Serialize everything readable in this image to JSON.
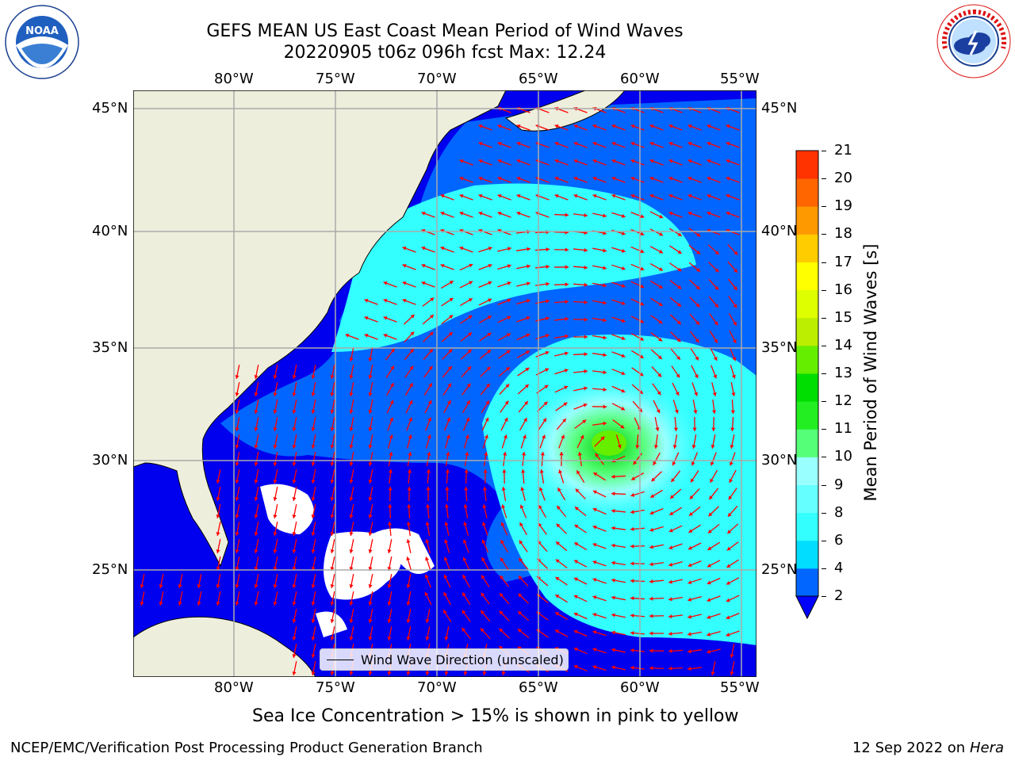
{
  "title_line1": "GEFS MEAN US East Coast Mean Period of Wind Waves",
  "title_line2": "20220905 t06z 096h fcst   Max: 12.24",
  "lon_ticks": [
    "80°W",
    "75°W",
    "70°W",
    "65°W",
    "60°W",
    "55°W"
  ],
  "lat_ticks": [
    "45°N",
    "40°N",
    "35°N",
    "30°N",
    "25°N"
  ],
  "colorbar": {
    "label": "Mean Period of Wind Waves [s]",
    "ticks": [
      "2",
      "4",
      "6",
      "8",
      "9",
      "10",
      "11",
      "12",
      "13",
      "14",
      "15",
      "16",
      "17",
      "18",
      "19",
      "20",
      "21"
    ],
    "colors": [
      "#0066ff",
      "#00ddff",
      "#33ffff",
      "#66ffff",
      "#99ffff",
      "#55ff77",
      "#22ee22",
      "#00dd00",
      "#66ee00",
      "#bbee00",
      "#ddff00",
      "#ffff00",
      "#ffcc00",
      "#ff9900",
      "#ff6600",
      "#ff3300",
      "#ff0000"
    ],
    "under_color": "#0000ff"
  },
  "legend_label": "Wind Wave Direction (unscaled)",
  "subtitle": "Sea Ice Concentration > 15% is shown in pink to yellow",
  "footer_left": "NCEP/EMC/Verification Post Processing Product Generation Branch",
  "footer_date": "12 Sep 2022 on",
  "footer_machine": "Hera",
  "noaa_logo_text": "NOAA",
  "colors": {
    "land": "#eeeedd",
    "ocean_deep": "#0000ee",
    "arrow": "#ff0000",
    "grid": "#aaaaaa"
  }
}
